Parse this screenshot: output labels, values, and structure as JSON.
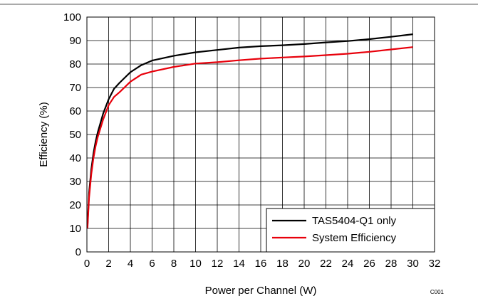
{
  "chart_data": {
    "type": "line",
    "title": "",
    "xlabel": "Power per Channel (W)",
    "ylabel": "Efficiency  (%)",
    "xlim": [
      0,
      32
    ],
    "ylim": [
      0,
      100
    ],
    "x_ticks": [
      0,
      2,
      4,
      6,
      8,
      10,
      12,
      14,
      16,
      18,
      20,
      22,
      24,
      26,
      28,
      30,
      32
    ],
    "y_ticks": [
      0,
      10,
      20,
      30,
      40,
      50,
      60,
      70,
      80,
      90,
      100
    ],
    "grid": true,
    "legend_position": "bottom-right",
    "annotation": "C001",
    "series": [
      {
        "name": "TAS5404-Q1 only",
        "color": "#000000",
        "x": [
          0.05,
          0.2,
          0.4,
          0.6,
          0.8,
          1,
          1.5,
          2,
          2.5,
          3,
          4,
          5,
          6,
          8,
          10,
          12,
          14,
          16,
          18,
          20,
          22,
          24,
          26,
          28,
          30
        ],
        "y": [
          11,
          25,
          35,
          42,
          47,
          51,
          59,
          65,
          69.5,
          72,
          76.5,
          79.5,
          81.5,
          83.5,
          85,
          86,
          87,
          87.6,
          88,
          88.5,
          89.2,
          89.8,
          90.6,
          91.6,
          92.7
        ]
      },
      {
        "name": "System Efficiency",
        "color": "#e8000b",
        "x": [
          0.05,
          0.2,
          0.4,
          0.6,
          0.8,
          1,
          1.5,
          2,
          2.5,
          3,
          4,
          5,
          6,
          8,
          10,
          12,
          14,
          16,
          18,
          20,
          22,
          24,
          26,
          28,
          30
        ],
        "y": [
          10,
          23,
          33,
          40,
          45,
          49,
          56.5,
          62.5,
          66,
          68,
          72.5,
          75.5,
          76.8,
          78.8,
          80.2,
          80.8,
          81.6,
          82.3,
          82.8,
          83.2,
          83.8,
          84.4,
          85.2,
          86.2,
          87.2
        ]
      }
    ]
  }
}
